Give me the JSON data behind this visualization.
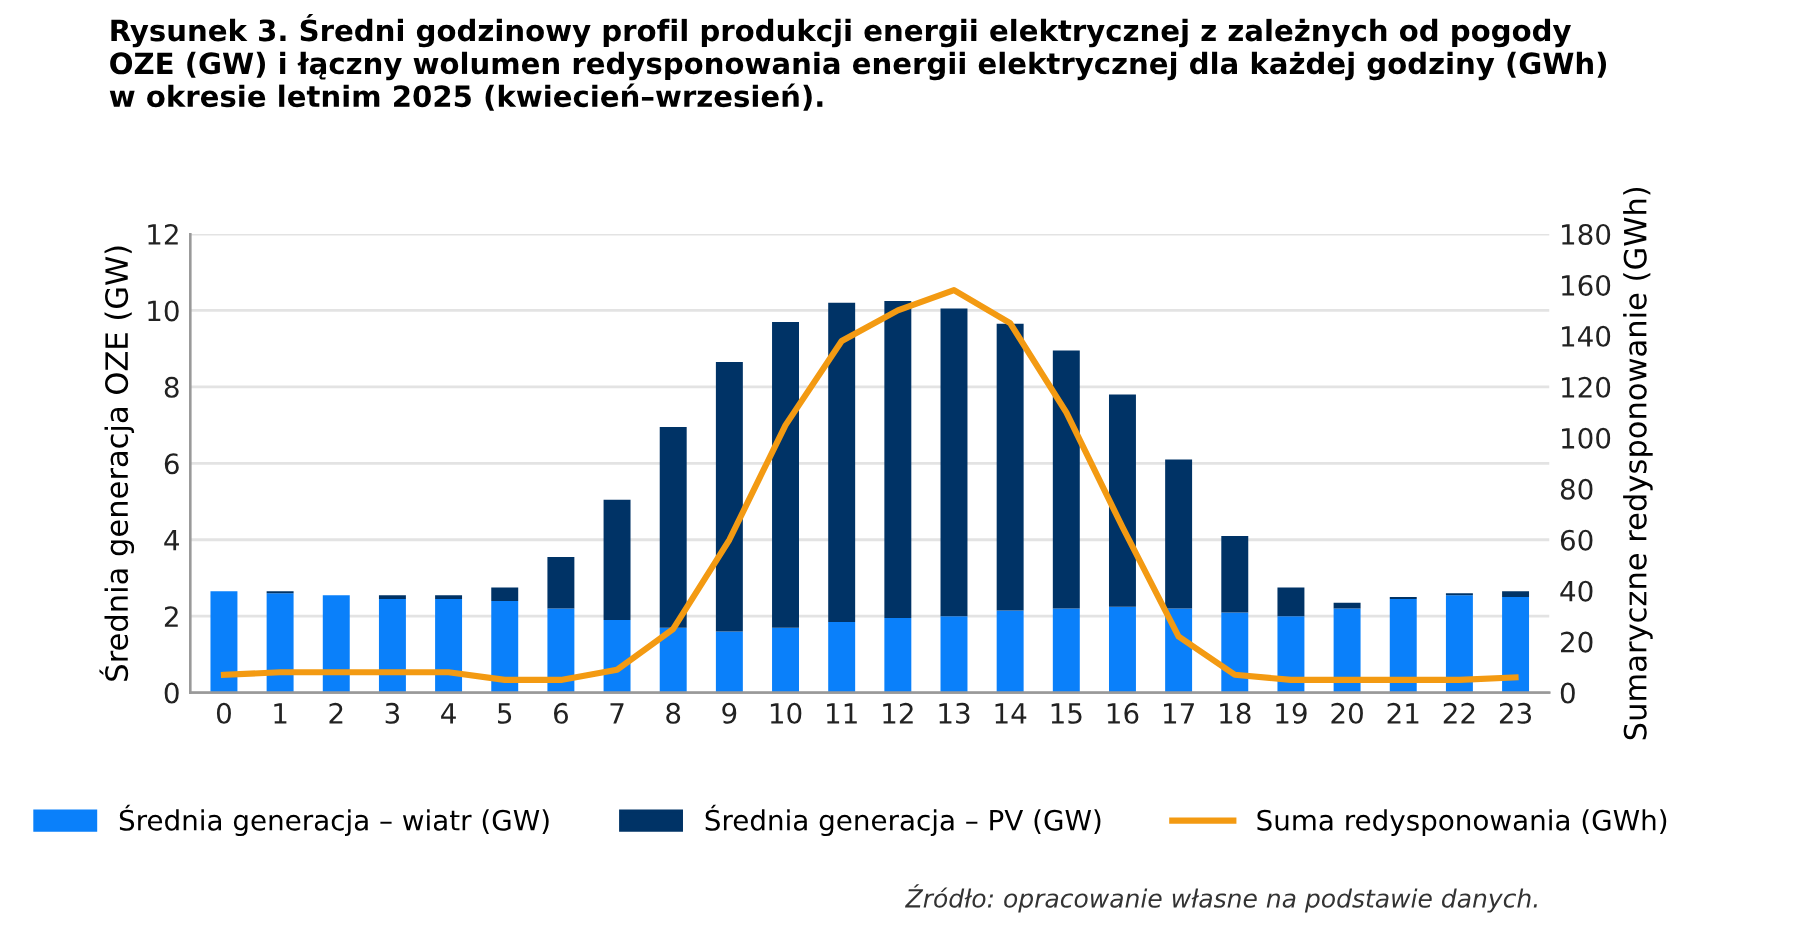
{
  "chart_data": {
    "type": "bar",
    "stacked": true,
    "title": "Rysunek 3. Średni godzinowy profil produkcji energii elektrycznej z zależnych od pogody\nOZE (GW) i łączny wolumen redysponowania energii elektrycznej dla każdej godziny (GWh)\nw okresie letnim 2025 (kwiecień–wrzesień).",
    "ylabel": "Średnia generacja OZE (GW)",
    "y2label": "Sumaryczne redysponowanie (GWh)",
    "categories": [
      "0",
      "1",
      "2",
      "3",
      "4",
      "5",
      "6",
      "7",
      "8",
      "9",
      "10",
      "11",
      "12",
      "13",
      "14",
      "15",
      "16",
      "17",
      "18",
      "19",
      "20",
      "21",
      "22",
      "23"
    ],
    "series": [
      {
        "name": "Średnia generacja – wiatr (GW)",
        "color": "#0a80fa",
        "values": [
          2.65,
          2.6,
          2.55,
          2.45,
          2.45,
          2.4,
          2.2,
          1.9,
          1.7,
          1.6,
          1.7,
          1.85,
          1.95,
          2.0,
          2.15,
          2.2,
          2.25,
          2.2,
          2.1,
          2.0,
          2.2,
          2.45,
          2.55,
          2.5
        ]
      },
      {
        "name": "Średnia generacja – PV (GW)",
        "color": "#003366",
        "values": [
          0,
          0.05,
          0,
          0.1,
          0.1,
          0.35,
          1.35,
          3.15,
          5.25,
          7.05,
          8.0,
          8.35,
          8.3,
          8.05,
          7.5,
          6.75,
          5.55,
          3.9,
          2.0,
          0.75,
          0.15,
          0.05,
          0.05,
          0.15
        ]
      },
      {
        "name": "Suma redysponowania (GWh)",
        "type": "line",
        "axis": "y2",
        "color": "#f39a12",
        "values": [
          7,
          8,
          8,
          8,
          8,
          5,
          5,
          9,
          25,
          60,
          105,
          138,
          150,
          158,
          145,
          110,
          65,
          22,
          7,
          5,
          5,
          5,
          5,
          6
        ]
      }
    ],
    "ylim": [
      0,
      12
    ],
    "yticks": [
      0,
      2,
      4,
      6,
      8,
      10,
      12
    ],
    "y2lim": [
      0,
      180
    ],
    "y2ticks": [
      0,
      20,
      40,
      60,
      80,
      100,
      120,
      140,
      160,
      180
    ],
    "grid": "y",
    "legend": "bottom",
    "marker": "none",
    "line_style": "solid",
    "annotations": [
      "Źródło: opracowanie własne na podstawie danych."
    ]
  }
}
